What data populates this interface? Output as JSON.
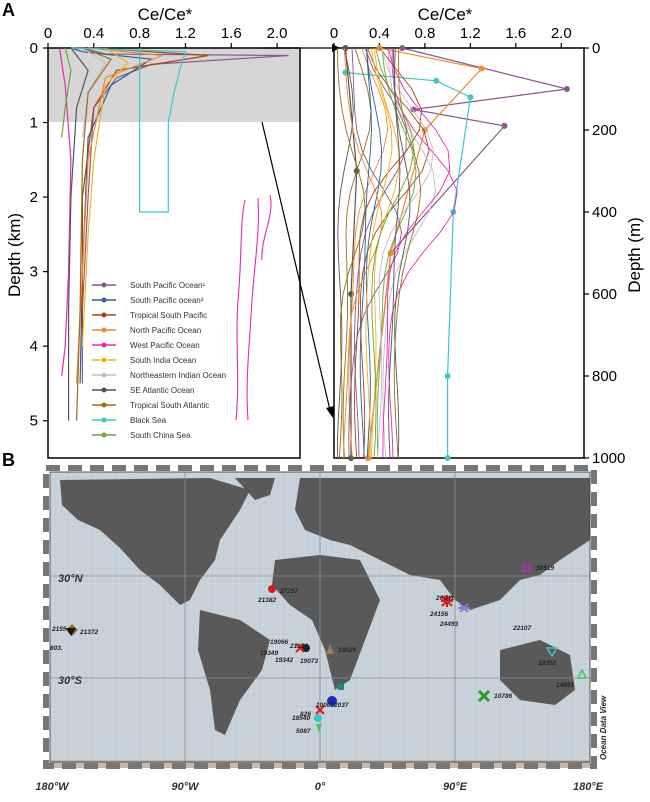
{
  "panels": {
    "a": "A",
    "b": "B"
  },
  "chart_data": [
    {
      "type": "line",
      "panel": "A-left",
      "title": "Ce/Ce*",
      "xlabel": "Ce/Ce*",
      "ylabel": "Depth (km)",
      "xlim": [
        0,
        2.2
      ],
      "ylim": [
        5.5,
        0
      ],
      "xticks": [
        "0",
        "0.4",
        "0.8",
        "1.2",
        "1.6",
        "2.0"
      ],
      "xtick_values": [
        0,
        0.4,
        0.8,
        1.2,
        1.6,
        2.0
      ],
      "yticks": [
        "0",
        "1",
        "2",
        "3",
        "4",
        "5"
      ],
      "ytick_values": [
        0,
        1,
        2,
        3,
        4,
        5
      ],
      "highlight_band": [
        0,
        1
      ],
      "legend_position": "lower-center",
      "series": [
        {
          "name": "South Pacific Ocean¹",
          "color": "#8a5a8a",
          "x": [
            0.3,
            0.5,
            2.1,
            0.9,
            0.6,
            0.4,
            0.35,
            0.3,
            0.3
          ],
          "y": [
            0,
            0.08,
            0.1,
            0.22,
            0.4,
            0.8,
            2,
            3.5,
            4.5
          ]
        },
        {
          "name": "South Pacific ocean²",
          "color": "#2c5ea0",
          "x": [
            0.2,
            0.3,
            0.9,
            0.55,
            0.35,
            0.3,
            0.28
          ],
          "y": [
            0,
            0.05,
            0.15,
            0.5,
            1.2,
            3,
            4.5
          ]
        },
        {
          "name": "Tropical South Pacific",
          "color": "#a0461a",
          "x": [
            0.4,
            1.4,
            0.6,
            0.4,
            0.3,
            0.3
          ],
          "y": [
            0,
            0.1,
            0.3,
            0.8,
            2,
            4
          ]
        },
        {
          "name": "North Pacific Ocean",
          "color": "#f08a2a",
          "x": [
            0.35,
            1.0,
            0.5,
            0.35,
            0.3,
            0.25
          ],
          "y": [
            0,
            0.1,
            0.4,
            1.5,
            3,
            4.5
          ]
        },
        {
          "name": "West Pacific Ocean",
          "color": "#e62ab4",
          "x": [
            0.1,
            0.15,
            0.2,
            0.18,
            0.15,
            0.12
          ],
          "y": [
            0,
            0.5,
            1.5,
            3,
            4,
            4.4
          ]
        },
        {
          "name": "South India Ocean",
          "color": "#f5b21e",
          "x": [
            0.5,
            0.7,
            0.5,
            0.4,
            0.35,
            0.3
          ],
          "y": [
            0,
            0.2,
            0.5,
            1.5,
            2.5,
            4
          ]
        },
        {
          "name": "Northeastern Indian Ocean",
          "color": "#c8bcc8",
          "x": [
            0.3,
            0.5,
            0.35,
            0.3
          ],
          "y": [
            0,
            0.2,
            0.6,
            1.2
          ]
        },
        {
          "name": "SE Atlantic Ocean",
          "color": "#555555",
          "x": [
            0.2,
            0.35,
            0.25,
            0.2,
            0.18,
            0.18
          ],
          "y": [
            0,
            0.3,
            0.8,
            2,
            3.5,
            5
          ]
        },
        {
          "name": "Tropical South Atlantic",
          "color": "#9a6e1a",
          "x": [
            0.3,
            0.55,
            0.35,
            0.3,
            0.28,
            0.25
          ],
          "y": [
            0,
            0.15,
            0.6,
            1.5,
            3.5,
            5
          ]
        },
        {
          "name": "Black Sea",
          "color": "#3ec8c8",
          "x": [
            0.2,
            1.2,
            1.15,
            1.1,
            1.05,
            1.05,
            0.8,
            0.8
          ],
          "y": [
            0,
            0.05,
            0.3,
            0.6,
            1.0,
            2.2,
            2.2,
            0
          ]
        },
        {
          "name": "South China Sea",
          "color": "#6aa83a",
          "x": [
            0.15,
            0.2,
            0.15,
            0.12
          ],
          "y": [
            0,
            0.3,
            0.8,
            1.2
          ]
        }
      ]
    },
    {
      "type": "line",
      "panel": "A-right",
      "title": "Ce/Ce*",
      "xlabel": "Ce/Ce*",
      "ylabel": "Depth (m)",
      "xlim": [
        0,
        2.2
      ],
      "ylim": [
        1000,
        0
      ],
      "xticks": [
        "0",
        "0.4",
        "0.8",
        "1.2",
        "1.6",
        "2.0"
      ],
      "xtick_values": [
        0,
        0.4,
        0.8,
        1.2,
        1.6,
        2.0
      ],
      "yticks": [
        "0",
        "200",
        "400",
        "600",
        "800",
        "1000"
      ],
      "ytick_values": [
        0,
        200,
        400,
        600,
        800,
        1000
      ],
      "series": [
        {
          "name": "South Pacific Ocean¹",
          "color": "#8a5a8a",
          "x": [
            0.6,
            2.05,
            0.7,
            1.5,
            0.5,
            0.3
          ],
          "y": [
            0,
            100,
            150,
            190,
            500,
            1000
          ]
        },
        {
          "name": "North Pacific Ocean",
          "color": "#f08a2a",
          "x": [
            0.4,
            1.3,
            0.8,
            0.5,
            0.3
          ],
          "y": [
            0,
            50,
            200,
            500,
            1000
          ]
        },
        {
          "name": "Black Sea",
          "color": "#3ec8c8",
          "x": [
            0.1,
            0.9,
            1.2,
            1.05,
            1.0,
            1.0
          ],
          "y": [
            60,
            80,
            120,
            400,
            800,
            1000
          ]
        },
        {
          "name": "SE Atlantic Ocean",
          "color": "#555555",
          "x": [
            0.1,
            0.2,
            0.15,
            0.15
          ],
          "y": [
            0,
            300,
            600,
            1000
          ]
        }
      ]
    }
  ],
  "map": {
    "title": "",
    "xticks": [
      "180°W",
      "90°W",
      "0°",
      "90°E",
      "180°E"
    ],
    "yticks": [
      "30°N",
      "30°S"
    ],
    "watermark": "Ocean Data View",
    "colors": {
      "ocean": "#c9d3dc",
      "land": "#595959",
      "grid": "#8c8c8c"
    },
    "stations": [
      "27257",
      "21382",
      "2155",
      "21372",
      "803.",
      "19066",
      "19342",
      "19349",
      "19073",
      "18525",
      "10003",
      "2037",
      "826",
      "5087",
      "26341",
      "24156",
      "24493",
      "22107",
      "18352",
      "14851",
      "10786",
      "30519",
      "21351",
      "18540"
    ]
  }
}
